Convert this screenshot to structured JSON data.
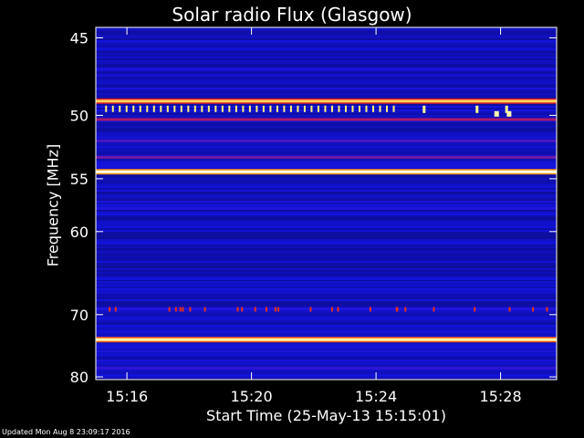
{
  "chart_data": {
    "type": "heatmap",
    "title": "Solar radio Flux (Glasgow)",
    "xlabel": "Start Time (25-May-13 15:15:01)",
    "ylabel": "Frequency [MHz]",
    "x_ticks": [
      "15:16",
      "15:20",
      "15:24",
      "15:28"
    ],
    "x_tick_minutes": [
      16,
      20,
      24,
      28
    ],
    "x_range_minutes": [
      15.0,
      29.8
    ],
    "y_ticks": [
      45,
      50,
      55,
      60,
      70,
      80
    ],
    "ylim": [
      44.4,
      80.5
    ],
    "y_scale": "reciprocal",
    "colormap": [
      "#000000",
      "#0c0c90",
      "#1414e6",
      "#8a1a9a",
      "#e11a1a",
      "#ff8c00",
      "#ffff8c",
      "#ffffff"
    ],
    "bright_bands": [
      {
        "freq_mhz": 49.0,
        "intensity": 0.8
      },
      {
        "freq_mhz": 54.4,
        "intensity": 0.97
      },
      {
        "freq_mhz": 73.7,
        "intensity": 0.9
      }
    ],
    "faint_bands": [
      {
        "freq_mhz": 50.3,
        "intensity": 0.48
      },
      {
        "freq_mhz": 51.9,
        "intensity": 0.35
      },
      {
        "freq_mhz": 53.2,
        "intensity": 0.4
      },
      {
        "freq_mhz": 57.7,
        "intensity": 0.3
      },
      {
        "freq_mhz": 65.3,
        "intensity": 0.27
      },
      {
        "freq_mhz": 69.2,
        "intensity": 0.3
      },
      {
        "freq_mhz": 78.4,
        "intensity": 0.32
      }
    ]
  },
  "footer": "Updated Mon Aug  8 23:09:17 2016"
}
